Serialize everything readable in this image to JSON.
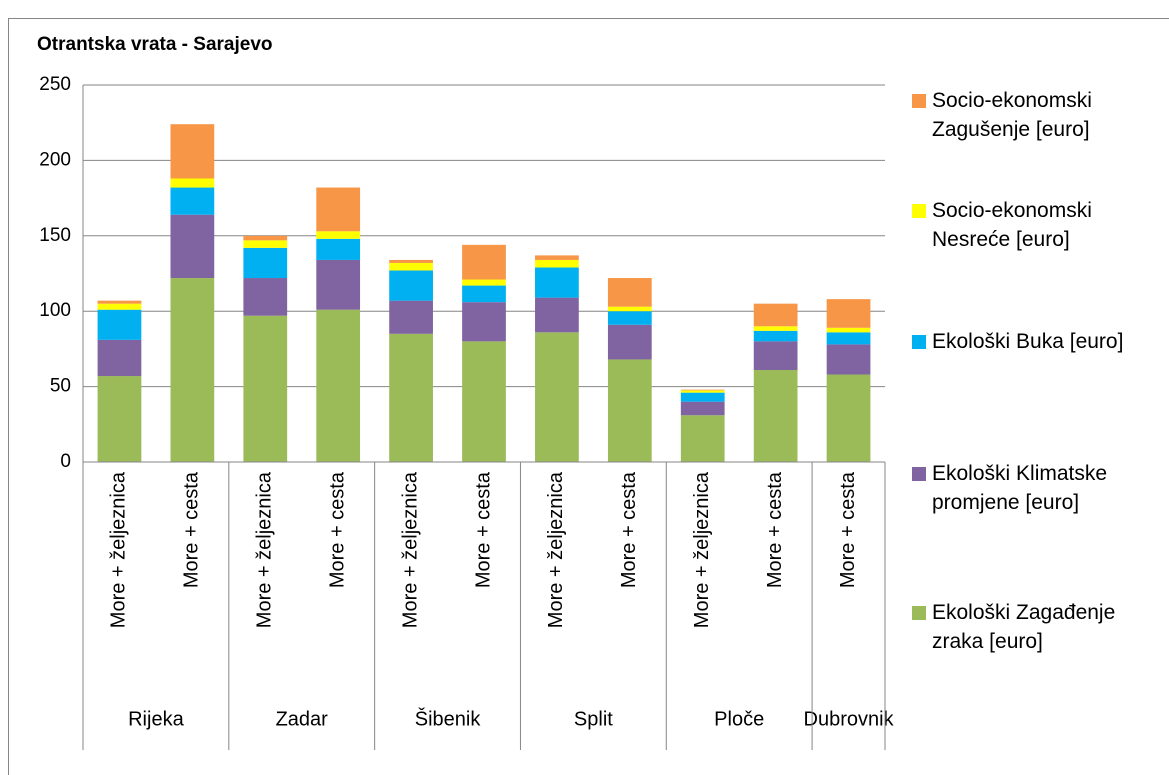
{
  "chart_data": {
    "type": "stacked_bar",
    "title": "Otrantska vrata - Sarajevo",
    "categories": [
      "More + željeznica",
      "More + cesta",
      "More + željeznica",
      "More + cesta",
      "More + željeznica",
      "More + cesta",
      "More + željeznica",
      "More + cesta",
      "More + željeznica",
      "More + cesta",
      "More + cesta"
    ],
    "category_groups": [
      "Rijeka",
      "Rijeka",
      "Zadar",
      "Zadar",
      "Šibenik",
      "Šibenik",
      "Split",
      "Split",
      "Ploče",
      "Ploče",
      "Dubrovnik"
    ],
    "series": [
      {
        "name": "Ekološki Zagađenje zraka [euro]",
        "color": "#9bbb59",
        "values": [
          57,
          122,
          97,
          101,
          85,
          80,
          86,
          68,
          31,
          61,
          58
        ]
      },
      {
        "name": "Ekološki Klimatske promjene [euro]",
        "color": "#8064a2",
        "values": [
          24,
          42,
          25,
          33,
          22,
          26,
          23,
          23,
          9,
          19,
          20
        ]
      },
      {
        "name": "Ekološki Buka [euro]",
        "color": "#00b0f0",
        "values": [
          20,
          18,
          20,
          14,
          20,
          11,
          20,
          9,
          6,
          7,
          8
        ]
      },
      {
        "name": "Socio-ekonomski Nesreće [euro]",
        "color": "#ffff00",
        "values": [
          4,
          6,
          5,
          5,
          5,
          4,
          5,
          3,
          1.5,
          3,
          3
        ]
      },
      {
        "name": "Socio-ekonomski Zagušenje [euro]",
        "color": "#f79646",
        "values": [
          2,
          36,
          3,
          29,
          2,
          23,
          3,
          19,
          0.5,
          15,
          19
        ]
      }
    ],
    "ylim": [
      0,
      250
    ],
    "yticks": [
      0,
      50,
      100,
      150,
      200,
      250
    ],
    "grid": true,
    "legend": "right"
  }
}
